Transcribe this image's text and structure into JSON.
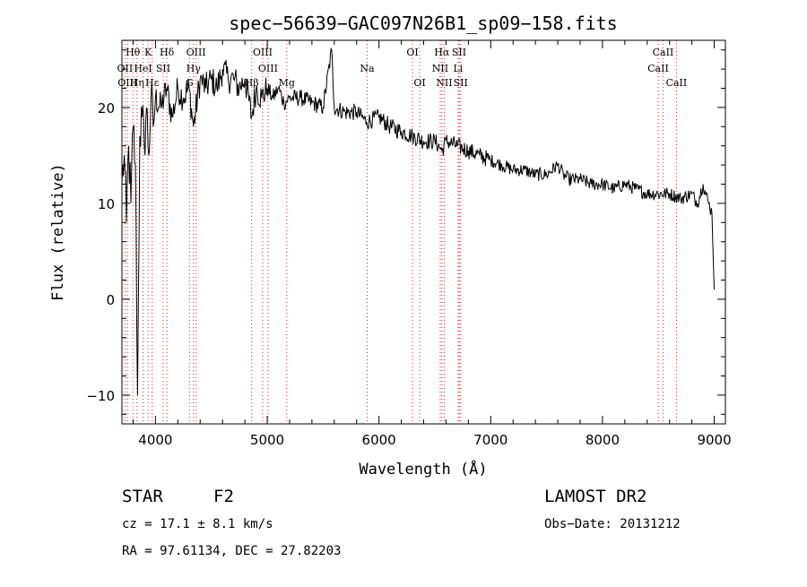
{
  "chart_data": {
    "type": "line",
    "title": "spec−56639−GAC097N26B1_sp09−158.fits",
    "xlabel": "Wavelength (Å)",
    "ylabel": "Flux (relative)",
    "xlim": [
      3700,
      9100
    ],
    "ylim": [
      -13,
      27
    ],
    "x_ticks": [
      4000,
      5000,
      6000,
      7000,
      8000,
      9000
    ],
    "y_ticks": [
      -10,
      0,
      10,
      20
    ],
    "y_tick_labels": [
      "−10",
      "0",
      "10",
      "20"
    ],
    "grid": false,
    "series": [
      {
        "x": [
          3700,
          3720,
          3740,
          3760,
          3780,
          3800,
          3820,
          3840,
          3860,
          3880,
          3900,
          3920,
          3940,
          3960,
          3980,
          4000,
          4050,
          4100,
          4150,
          4200,
          4250,
          4300,
          4340,
          4400,
          4450,
          4500,
          4550,
          4600,
          4650,
          4700,
          4750,
          4800,
          4861,
          4900,
          4950,
          5000,
          5050,
          5100,
          5150,
          5200,
          5300,
          5400,
          5500,
          5577,
          5600,
          5700,
          5800,
          5890,
          6000,
          6100,
          6200,
          6300,
          6400,
          6500,
          6563,
          6600,
          6700,
          6800,
          6900,
          7000,
          7100,
          7200,
          7300,
          7400,
          7500,
          7600,
          7650,
          7700,
          7800,
          7900,
          8000,
          8100,
          8200,
          8300,
          8400,
          8500,
          8600,
          8700,
          8800,
          8850,
          8900,
          8950,
          8980,
          9000
        ],
        "values": [
          12,
          15,
          8,
          16,
          10,
          18,
          14,
          -10,
          17,
          19,
          16,
          20,
          15,
          21,
          18,
          21,
          20,
          22,
          19,
          22,
          21,
          22,
          18,
          23,
          22,
          23,
          22,
          24,
          23,
          23,
          22,
          23,
          19,
          22,
          21,
          22,
          21,
          22,
          20.5,
          21,
          21,
          20.5,
          20,
          26,
          20,
          19.5,
          19.5,
          18.5,
          19,
          18,
          17.5,
          17,
          16.5,
          16.5,
          15.5,
          16.5,
          16,
          15.5,
          15,
          14.5,
          14,
          13.5,
          13.5,
          13,
          13,
          14,
          13,
          12.5,
          12.5,
          12,
          12,
          11.5,
          12,
          11.5,
          11,
          11,
          11,
          10.5,
          11,
          10,
          12,
          10,
          9,
          1
        ]
      }
    ],
    "spectral_lines": [
      {
        "label": "Hθ",
        "x": 3798,
        "row": 0
      },
      {
        "label": "OII",
        "x": 3727,
        "row": 1
      },
      {
        "label": "OIII",
        "x": 3750,
        "row": 2
      },
      {
        "label": "K",
        "x": 3934,
        "row": 0
      },
      {
        "label": "HeI",
        "x": 3889,
        "row": 1
      },
      {
        "label": "Hη",
        "x": 3835,
        "row": 2
      },
      {
        "label": "Hδ",
        "x": 4102,
        "row": 0
      },
      {
        "label": "SII",
        "x": 4069,
        "row": 1
      },
      {
        "label": "Hε",
        "x": 3970,
        "row": 2
      },
      {
        "label": "OIII",
        "x": 4363,
        "row": 0
      },
      {
        "label": "Hγ",
        "x": 4340,
        "row": 1
      },
      {
        "label": "G",
        "x": 4304,
        "row": 2
      },
      {
        "label": "OIII",
        "x": 4959,
        "row": 0
      },
      {
        "label": "OIII",
        "x": 5007,
        "row": 1
      },
      {
        "label": "Hβ",
        "x": 4861,
        "row": 2
      },
      {
        "label": "Mg",
        "x": 5175,
        "row": 2
      },
      {
        "label": "Na",
        "x": 5894,
        "row": 1
      },
      {
        "label": "OI",
        "x": 6300,
        "row": 0
      },
      {
        "label": "OI",
        "x": 6364,
        "row": 2
      },
      {
        "label": "Hα",
        "x": 6563,
        "row": 0
      },
      {
        "label": "SII",
        "x": 6717,
        "row": 0
      },
      {
        "label": "NII",
        "x": 6548,
        "row": 1
      },
      {
        "label": "Li",
        "x": 6708,
        "row": 1
      },
      {
        "label": "NII",
        "x": 6584,
        "row": 2
      },
      {
        "label": "SII",
        "x": 6731,
        "row": 2
      },
      {
        "label": "CaII",
        "x": 8542,
        "row": 0
      },
      {
        "label": "CaII",
        "x": 8498,
        "row": 1
      },
      {
        "label": "CaII",
        "x": 8662,
        "row": 2
      }
    ]
  },
  "info": {
    "object_class": "STAR",
    "subclass": "F2",
    "survey": "LAMOST DR2",
    "cz": "cz = 17.1 ± 8.1 km/s",
    "obs_date": "Obs−Date: 20131212",
    "coords": "RA =  97.61134, DEC =  27.82203"
  }
}
